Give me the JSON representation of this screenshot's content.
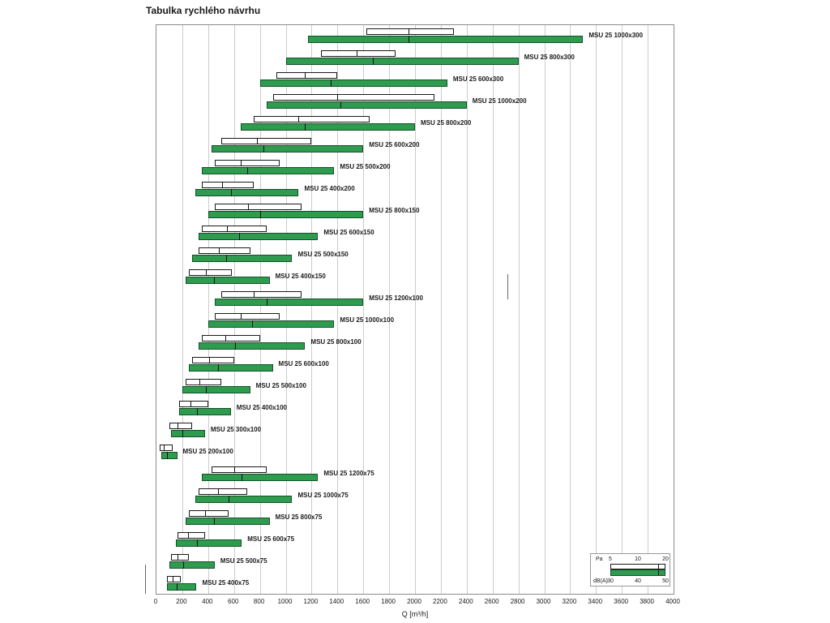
{
  "colors": {
    "bar_green": "#2e9b4e",
    "bar_white": "#ffffff",
    "bar_border": "#1a1a1a",
    "grid": "#cccccc"
  },
  "chart_data": {
    "type": "bar",
    "orientation": "horizontal-range",
    "title": "Tabulka rychlého návrhu",
    "xlabel": "Q [m³/h]",
    "xlim": [
      0,
      4000
    ],
    "x_ticks": [
      0,
      200,
      400,
      600,
      800,
      1000,
      1200,
      1400,
      1600,
      1800,
      2000,
      2200,
      2400,
      2600,
      2800,
      3000,
      3200,
      3400,
      3600,
      3800,
      4000
    ],
    "grid": true,
    "legend": {
      "position": "bottom-right",
      "pa_label": "Pa",
      "pa_levels": [
        5,
        10,
        20
      ],
      "dba_label": "dB(A)",
      "dba_levels": [
        30,
        40,
        50
      ]
    },
    "series": [
      {
        "label": "MSU 25 1000x300",
        "pa_q_m3h": [
          1625,
          1950,
          2300
        ],
        "dba_q_m3h": [
          1175,
          1950,
          3300
        ]
      },
      {
        "label": "MSU 25 800x300",
        "pa_q_m3h": [
          1275,
          1550,
          1850
        ],
        "dba_q_m3h": [
          1000,
          1675,
          2800
        ]
      },
      {
        "label": "MSU 25 600x300",
        "pa_q_m3h": [
          925,
          1150,
          1400
        ],
        "dba_q_m3h": [
          800,
          1350,
          2250
        ]
      },
      {
        "label": "MSU 25 1000x200",
        "pa_q_m3h": [
          900,
          1400,
          2150
        ],
        "dba_q_m3h": [
          850,
          1425,
          2400
        ]
      },
      {
        "label": "MSU 25 800x200",
        "pa_q_m3h": [
          750,
          1100,
          1650
        ],
        "dba_q_m3h": [
          650,
          1150,
          2000
        ]
      },
      {
        "label": "MSU 25 600x200",
        "pa_q_m3h": [
          500,
          775,
          1200
        ],
        "dba_q_m3h": [
          425,
          825,
          1600
        ]
      },
      {
        "label": "MSU 25 500x200",
        "pa_q_m3h": [
          450,
          650,
          950
        ],
        "dba_q_m3h": [
          350,
          700,
          1375
        ]
      },
      {
        "label": "MSU 25 400x200",
        "pa_q_m3h": [
          350,
          510,
          750
        ],
        "dba_q_m3h": [
          300,
          575,
          1100
        ]
      },
      {
        "label": "MSU 25 800x150",
        "pa_q_m3h": [
          450,
          710,
          1125
        ],
        "dba_q_m3h": [
          400,
          800,
          1600
        ]
      },
      {
        "label": "MSU 25 600x150",
        "pa_q_m3h": [
          350,
          545,
          850
        ],
        "dba_q_m3h": [
          325,
          640,
          1250
        ]
      },
      {
        "label": "MSU 25 500x150",
        "pa_q_m3h": [
          325,
          485,
          725
        ],
        "dba_q_m3h": [
          275,
          540,
          1050
        ]
      },
      {
        "label": "MSU 25 400x150",
        "pa_q_m3h": [
          250,
          380,
          580
        ],
        "dba_q_m3h": [
          225,
          445,
          875
        ]
      },
      {
        "label": "MSU 25 1200x100",
        "pa_q_m3h": [
          500,
          750,
          1125
        ],
        "dba_q_m3h": [
          450,
          850,
          1600
        ]
      },
      {
        "label": "MSU 25 1000x100",
        "pa_q_m3h": [
          450,
          650,
          950
        ],
        "dba_q_m3h": [
          400,
          740,
          1375
        ]
      },
      {
        "label": "MSU 25 800x100",
        "pa_q_m3h": [
          350,
          530,
          800
        ],
        "dba_q_m3h": [
          325,
          610,
          1150
        ]
      },
      {
        "label": "MSU 25 600x100",
        "pa_q_m3h": [
          275,
          405,
          600
        ],
        "dba_q_m3h": [
          250,
          475,
          900
        ]
      },
      {
        "label": "MSU 25 500x100",
        "pa_q_m3h": [
          225,
          335,
          500
        ],
        "dba_q_m3h": [
          200,
          380,
          725
        ]
      },
      {
        "label": "MSU 25 400x100",
        "pa_q_m3h": [
          175,
          265,
          400
        ],
        "dba_q_m3h": [
          175,
          315,
          575
        ]
      },
      {
        "label": "MSU 25 300x100",
        "pa_q_m3h": [
          100,
          165,
          275
        ],
        "dba_q_m3h": [
          110,
          200,
          375
        ]
      },
      {
        "label": "MSU 25 200x100",
        "pa_q_m3h": [
          25,
          55,
          125
        ],
        "dba_q_m3h": [
          40,
          80,
          160
        ]
      },
      {
        "label": "MSU 25 1200x75",
        "pa_q_m3h": [
          425,
          600,
          850
        ],
        "dba_q_m3h": [
          350,
          660,
          1250
        ]
      },
      {
        "label": "MSU 25 1000x75",
        "pa_q_m3h": [
          325,
          475,
          700
        ],
        "dba_q_m3h": [
          300,
          560,
          1050
        ]
      },
      {
        "label": "MSU 25 800x75",
        "pa_q_m3h": [
          250,
          375,
          560
        ],
        "dba_q_m3h": [
          225,
          445,
          875
        ]
      },
      {
        "label": "MSU 25 600x75",
        "pa_q_m3h": [
          160,
          245,
          375
        ],
        "dba_q_m3h": [
          150,
          315,
          660
        ]
      },
      {
        "label": "MSU 25 500x75",
        "pa_q_m3h": [
          110,
          165,
          250
        ],
        "dba_q_m3h": [
          100,
          210,
          450
        ]
      },
      {
        "label": "MSU 25 400x75",
        "pa_q_m3h": [
          80,
          125,
          190
        ],
        "dba_q_m3h": [
          80,
          155,
          310
        ]
      }
    ]
  }
}
